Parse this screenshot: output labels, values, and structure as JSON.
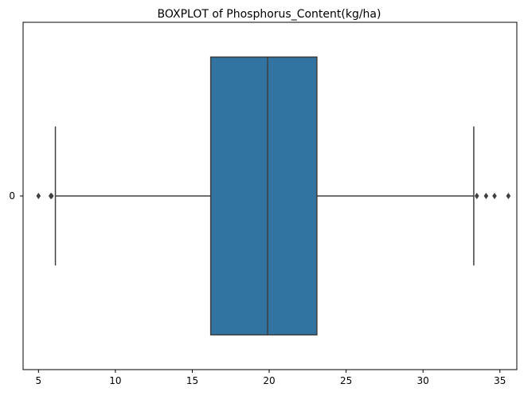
{
  "chart_data": {
    "type": "boxplot",
    "title": "BOXPLOT of Phosphorus_Content(kg/ha)",
    "xlabel": "",
    "ylabel": "",
    "orientation": "horizontal",
    "xlim": [
      4.0,
      36.1
    ],
    "x_ticks": [
      5,
      10,
      15,
      20,
      25,
      30,
      35
    ],
    "y_ticks": [
      "0"
    ],
    "grid": false,
    "box_color": "#3274a1",
    "line_color": "#3f3f3f",
    "boxes": [
      {
        "category": "0",
        "whisker_low": 6.1,
        "q1": 16.2,
        "median": 19.9,
        "q3": 23.1,
        "whisker_high": 33.3,
        "outliers": [
          5.0,
          5.8,
          5.85,
          33.5,
          34.1,
          34.65,
          35.55
        ]
      }
    ]
  }
}
